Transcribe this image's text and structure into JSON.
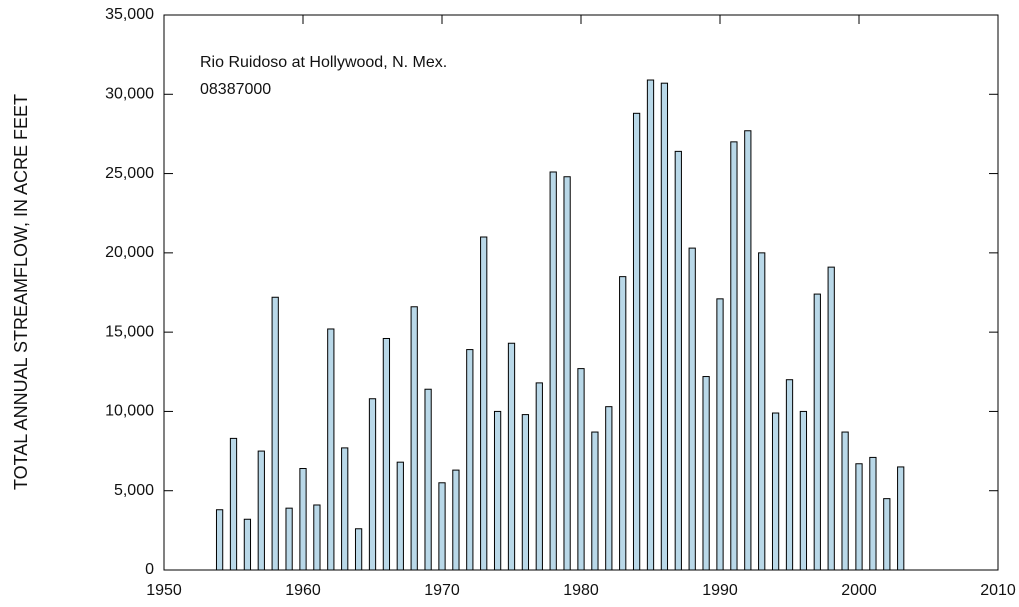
{
  "chart_data": {
    "type": "bar",
    "y_label": "TOTAL ANNUAL STREAMFLOW, IN ACRE FEET",
    "annotations": [
      "Rio Ruidoso at Hollywood, N. Mex.",
      "08387000"
    ],
    "x": [
      1954,
      1955,
      1956,
      1957,
      1958,
      1959,
      1960,
      1961,
      1962,
      1963,
      1964,
      1965,
      1966,
      1967,
      1968,
      1969,
      1970,
      1971,
      1972,
      1973,
      1974,
      1975,
      1976,
      1977,
      1978,
      1979,
      1980,
      1981,
      1982,
      1983,
      1984,
      1985,
      1986,
      1987,
      1988,
      1989,
      1990,
      1991,
      1992,
      1993,
      1994,
      1995,
      1996,
      1997,
      1998,
      1999,
      2000,
      2001,
      2002,
      2003
    ],
    "values": [
      3800,
      8300,
      3200,
      7500,
      17200,
      3900,
      6400,
      4100,
      15200,
      7700,
      2600,
      10800,
      14600,
      6800,
      16600,
      11400,
      5500,
      6300,
      13900,
      21000,
      10000,
      14300,
      9800,
      11800,
      25100,
      24800,
      12700,
      8700,
      10300,
      18500,
      28800,
      30900,
      30700,
      26400,
      20300,
      12200,
      17100,
      27000,
      27700,
      20000,
      9900,
      12000,
      10000,
      17400,
      19100,
      8700,
      6700,
      7100,
      4500,
      6500
    ],
    "color": "#b9d8e8",
    "xlim": [
      1950,
      2010
    ],
    "xticks": [
      1950,
      1960,
      1970,
      1980,
      1990,
      2000,
      2010
    ],
    "ylim": [
      0,
      35000
    ],
    "yticks": [
      0,
      {
        "value": 5000,
        "label": "5,000"
      },
      {
        "value": 10000,
        "label": "10,000"
      },
      {
        "value": 15000,
        "label": "15,000"
      },
      {
        "value": 20000,
        "label": "20,000"
      },
      {
        "value": 25000,
        "label": "25,000"
      },
      {
        "value": 30000,
        "label": "30,000"
      },
      {
        "value": 35000,
        "label": "35,000"
      }
    ],
    "grid": false
  }
}
